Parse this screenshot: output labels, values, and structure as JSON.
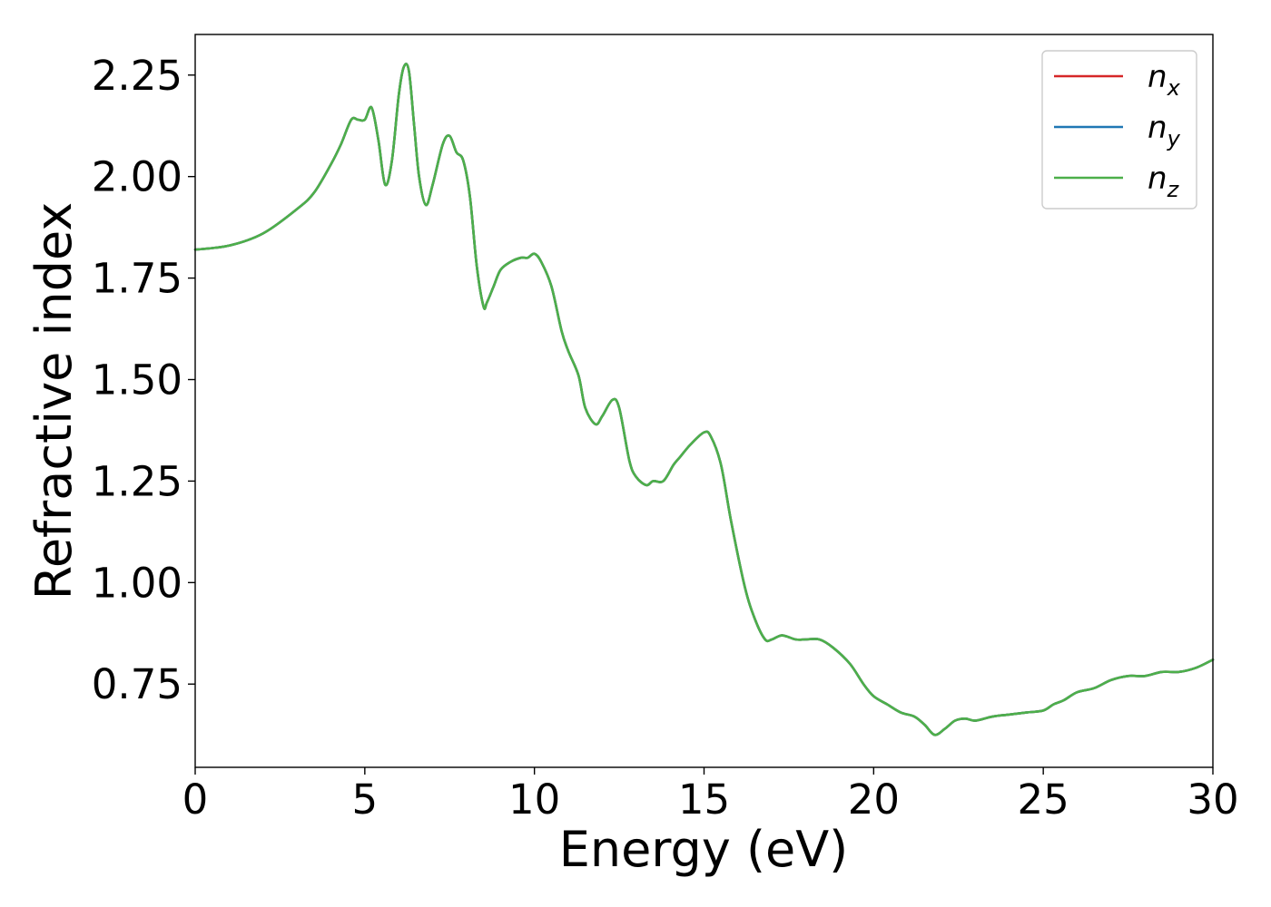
{
  "chart_data": {
    "type": "line",
    "title": "",
    "xlabel": "Energy (eV)",
    "ylabel": "Refractive index",
    "xlim": [
      0,
      30
    ],
    "ylim": [
      0.545,
      2.35
    ],
    "xticks": [
      0,
      5,
      10,
      15,
      20,
      25,
      30
    ],
    "xtick_labels": [
      "0",
      "5",
      "10",
      "15",
      "20",
      "25",
      "30"
    ],
    "yticks": [
      0.75,
      1.0,
      1.25,
      1.5,
      1.75,
      2.0,
      2.25
    ],
    "ytick_labels": [
      "0.75",
      "1.00",
      "1.25",
      "1.50",
      "1.75",
      "2.00",
      "2.25"
    ],
    "grid": false,
    "legend_position": "top-right",
    "legend": [
      {
        "base": "n",
        "sub": "x",
        "color": "#d62728"
      },
      {
        "base": "n",
        "sub": "y",
        "color": "#1f77b4"
      },
      {
        "base": "n",
        "sub": "z",
        "color": "#4daf4a"
      }
    ],
    "series": [
      {
        "name": "n_x",
        "color": "#d62728",
        "x": [
          0,
          1,
          2,
          3,
          3.5,
          4,
          4.3,
          4.6,
          4.8,
          5.0,
          5.2,
          5.4,
          5.6,
          5.8,
          6.0,
          6.15,
          6.3,
          6.45,
          6.6,
          6.8,
          7.0,
          7.3,
          7.5,
          7.7,
          7.9,
          8.1,
          8.3,
          8.5,
          8.6,
          8.8,
          9.0,
          9.3,
          9.6,
          9.8,
          10.0,
          10.2,
          10.5,
          10.8,
          11.0,
          11.3,
          11.5,
          11.8,
          12.0,
          12.3,
          12.5,
          12.8,
          13.0,
          13.3,
          13.5,
          13.8,
          14.1,
          14.3,
          14.6,
          15.0,
          15.2,
          15.5,
          15.8,
          16.2,
          16.5,
          16.8,
          17.0,
          17.3,
          17.7,
          18.0,
          18.4,
          18.8,
          19.3,
          19.7,
          20.0,
          20.4,
          20.8,
          21.2,
          21.5,
          21.8,
          22.1,
          22.4,
          22.7,
          23.0,
          23.5,
          24.0,
          24.5,
          25.0,
          25.3,
          25.6,
          26.0,
          26.5,
          27.0,
          27.5,
          28.0,
          28.5,
          29.0,
          29.5,
          30.0
        ],
        "y": [
          1.82,
          1.83,
          1.86,
          1.92,
          1.96,
          2.03,
          2.08,
          2.14,
          2.14,
          2.14,
          2.17,
          2.09,
          1.98,
          2.04,
          2.2,
          2.27,
          2.26,
          2.13,
          2.0,
          1.93,
          1.98,
          2.08,
          2.1,
          2.06,
          2.04,
          1.95,
          1.78,
          1.68,
          1.69,
          1.73,
          1.77,
          1.79,
          1.8,
          1.8,
          1.81,
          1.79,
          1.73,
          1.62,
          1.57,
          1.51,
          1.43,
          1.39,
          1.41,
          1.45,
          1.43,
          1.3,
          1.26,
          1.24,
          1.25,
          1.25,
          1.29,
          1.31,
          1.34,
          1.37,
          1.36,
          1.29,
          1.15,
          0.99,
          0.91,
          0.86,
          0.86,
          0.87,
          0.86,
          0.86,
          0.86,
          0.84,
          0.8,
          0.75,
          0.72,
          0.7,
          0.68,
          0.67,
          0.65,
          0.625,
          0.64,
          0.66,
          0.665,
          0.66,
          0.67,
          0.675,
          0.68,
          0.685,
          0.7,
          0.71,
          0.73,
          0.74,
          0.76,
          0.77,
          0.77,
          0.78,
          0.78,
          0.79,
          0.81
        ]
      },
      {
        "name": "n_y",
        "color": "#1f77b4",
        "x": [
          0,
          1,
          2,
          3,
          3.5,
          4,
          4.3,
          4.6,
          4.8,
          5.0,
          5.2,
          5.4,
          5.6,
          5.8,
          6.0,
          6.15,
          6.3,
          6.45,
          6.6,
          6.8,
          7.0,
          7.3,
          7.5,
          7.7,
          7.9,
          8.1,
          8.3,
          8.5,
          8.6,
          8.8,
          9.0,
          9.3,
          9.6,
          9.8,
          10.0,
          10.2,
          10.5,
          10.8,
          11.0,
          11.3,
          11.5,
          11.8,
          12.0,
          12.3,
          12.5,
          12.8,
          13.0,
          13.3,
          13.5,
          13.8,
          14.1,
          14.3,
          14.6,
          15.0,
          15.2,
          15.5,
          15.8,
          16.2,
          16.5,
          16.8,
          17.0,
          17.3,
          17.7,
          18.0,
          18.4,
          18.8,
          19.3,
          19.7,
          20.0,
          20.4,
          20.8,
          21.2,
          21.5,
          21.8,
          22.1,
          22.4,
          22.7,
          23.0,
          23.5,
          24.0,
          24.5,
          25.0,
          25.3,
          25.6,
          26.0,
          26.5,
          27.0,
          27.5,
          28.0,
          28.5,
          29.0,
          29.5,
          30.0
        ],
        "y": [
          1.82,
          1.83,
          1.86,
          1.92,
          1.96,
          2.03,
          2.08,
          2.14,
          2.14,
          2.14,
          2.17,
          2.09,
          1.98,
          2.04,
          2.2,
          2.27,
          2.26,
          2.13,
          2.0,
          1.93,
          1.98,
          2.08,
          2.1,
          2.06,
          2.04,
          1.95,
          1.78,
          1.68,
          1.69,
          1.73,
          1.77,
          1.79,
          1.8,
          1.8,
          1.81,
          1.79,
          1.73,
          1.62,
          1.57,
          1.51,
          1.43,
          1.39,
          1.41,
          1.45,
          1.43,
          1.3,
          1.26,
          1.24,
          1.25,
          1.25,
          1.29,
          1.31,
          1.34,
          1.37,
          1.36,
          1.29,
          1.15,
          0.99,
          0.91,
          0.86,
          0.86,
          0.87,
          0.86,
          0.86,
          0.86,
          0.84,
          0.8,
          0.75,
          0.72,
          0.7,
          0.68,
          0.67,
          0.65,
          0.625,
          0.64,
          0.66,
          0.665,
          0.66,
          0.67,
          0.675,
          0.68,
          0.685,
          0.7,
          0.71,
          0.73,
          0.74,
          0.76,
          0.77,
          0.77,
          0.78,
          0.78,
          0.79,
          0.81
        ]
      },
      {
        "name": "n_z",
        "color": "#4daf4a",
        "x": [
          0,
          1,
          2,
          3,
          3.5,
          4,
          4.3,
          4.6,
          4.8,
          5.0,
          5.2,
          5.4,
          5.6,
          5.8,
          6.0,
          6.15,
          6.3,
          6.45,
          6.6,
          6.8,
          7.0,
          7.3,
          7.5,
          7.7,
          7.9,
          8.1,
          8.3,
          8.5,
          8.6,
          8.8,
          9.0,
          9.3,
          9.6,
          9.8,
          10.0,
          10.2,
          10.5,
          10.8,
          11.0,
          11.3,
          11.5,
          11.8,
          12.0,
          12.3,
          12.5,
          12.8,
          13.0,
          13.3,
          13.5,
          13.8,
          14.1,
          14.3,
          14.6,
          15.0,
          15.2,
          15.5,
          15.8,
          16.2,
          16.5,
          16.8,
          17.0,
          17.3,
          17.7,
          18.0,
          18.4,
          18.8,
          19.3,
          19.7,
          20.0,
          20.4,
          20.8,
          21.2,
          21.5,
          21.8,
          22.1,
          22.4,
          22.7,
          23.0,
          23.5,
          24.0,
          24.5,
          25.0,
          25.3,
          25.6,
          26.0,
          26.5,
          27.0,
          27.5,
          28.0,
          28.5,
          29.0,
          29.5,
          30.0
        ],
        "y": [
          1.82,
          1.83,
          1.86,
          1.92,
          1.96,
          2.03,
          2.08,
          2.14,
          2.14,
          2.14,
          2.17,
          2.09,
          1.98,
          2.04,
          2.2,
          2.27,
          2.26,
          2.13,
          2.0,
          1.93,
          1.98,
          2.08,
          2.1,
          2.06,
          2.04,
          1.95,
          1.78,
          1.68,
          1.69,
          1.73,
          1.77,
          1.79,
          1.8,
          1.8,
          1.81,
          1.79,
          1.73,
          1.62,
          1.57,
          1.51,
          1.43,
          1.39,
          1.41,
          1.45,
          1.43,
          1.3,
          1.26,
          1.24,
          1.25,
          1.25,
          1.29,
          1.31,
          1.34,
          1.37,
          1.36,
          1.29,
          1.15,
          0.99,
          0.91,
          0.86,
          0.86,
          0.87,
          0.86,
          0.86,
          0.86,
          0.84,
          0.8,
          0.75,
          0.72,
          0.7,
          0.68,
          0.67,
          0.65,
          0.625,
          0.64,
          0.66,
          0.665,
          0.66,
          0.67,
          0.675,
          0.68,
          0.685,
          0.7,
          0.71,
          0.73,
          0.74,
          0.76,
          0.77,
          0.77,
          0.78,
          0.78,
          0.79,
          0.81
        ]
      }
    ]
  }
}
